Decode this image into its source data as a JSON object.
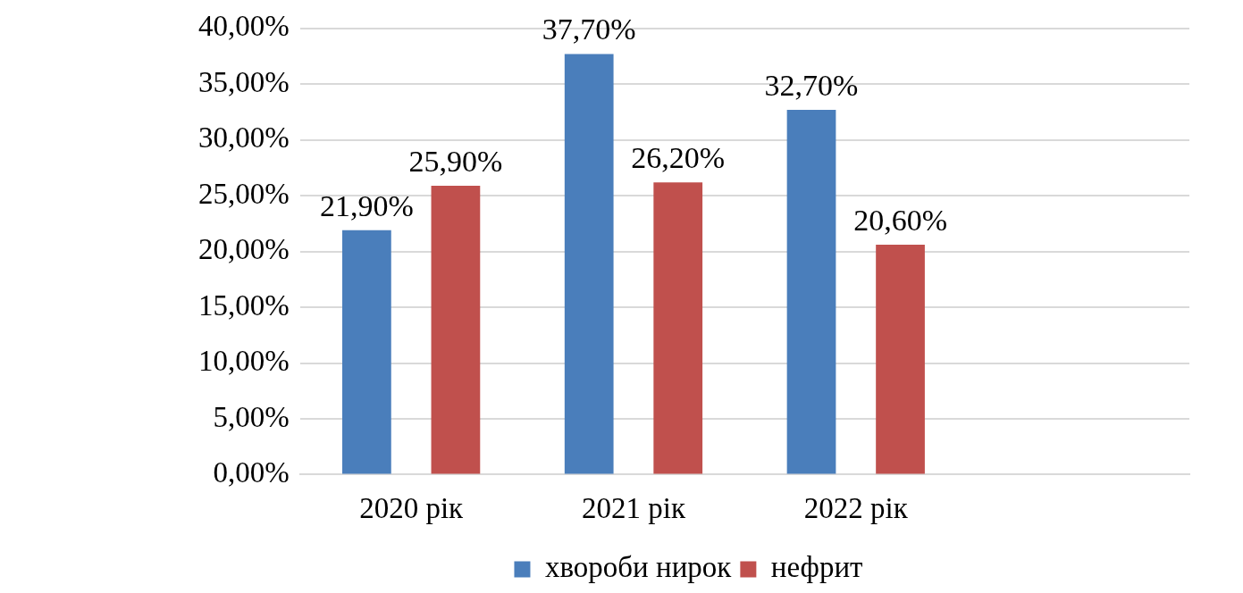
{
  "chart_data": {
    "type": "bar",
    "categories": [
      "2020 рік",
      "2021 рік",
      "2022 рік",
      null
    ],
    "series": [
      {
        "name": "хвороби нирок",
        "color": "#4a7ebb",
        "values": [
          21.9,
          37.7,
          32.7,
          null
        ],
        "value_labels": [
          "21,90%",
          "37,70%",
          "32,70%",
          null
        ]
      },
      {
        "name": "нефрит",
        "color": "#c0504d",
        "values": [
          25.9,
          26.2,
          20.6,
          null
        ],
        "value_labels": [
          "25,90%",
          "26,20%",
          "20,60%",
          null
        ]
      }
    ],
    "ylim": [
      0,
      40
    ],
    "yticks": [
      {
        "value": 0,
        "label": "0,00%"
      },
      {
        "value": 5,
        "label": "5,00%"
      },
      {
        "value": 10,
        "label": "10,00%"
      },
      {
        "value": 15,
        "label": "15,00%"
      },
      {
        "value": 20,
        "label": "20,00%"
      },
      {
        "value": 25,
        "label": "25,00%"
      },
      {
        "value": 30,
        "label": "30,00%"
      },
      {
        "value": 35,
        "label": "35,00%"
      },
      {
        "value": 40,
        "label": "40,00%"
      }
    ],
    "grid": "y",
    "legend": "bottom"
  }
}
